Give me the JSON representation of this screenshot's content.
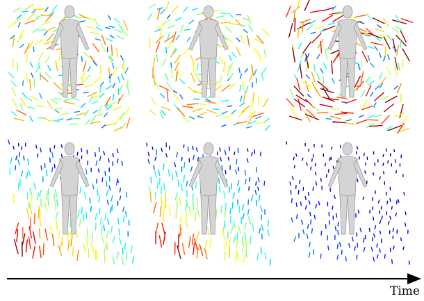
{
  "axis_label": "Time"
}
